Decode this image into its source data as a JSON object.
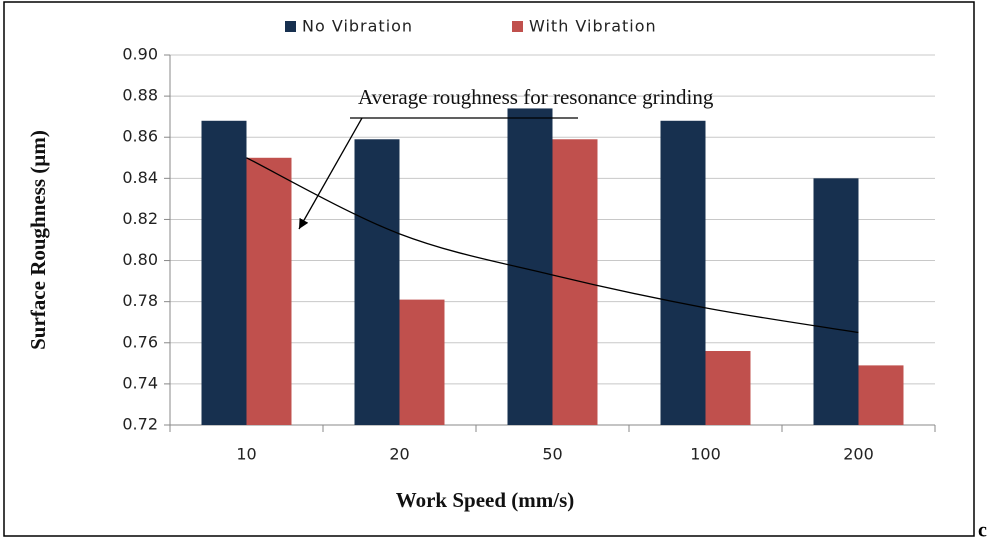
{
  "chart_data": {
    "type": "bar",
    "categories": [
      "10",
      "20",
      "50",
      "100",
      "200"
    ],
    "series": [
      {
        "name": "No Vibration",
        "color": "#17304f",
        "values": [
          0.868,
          0.859,
          0.874,
          0.868,
          0.84
        ]
      },
      {
        "name": "With Vibration",
        "color": "#c0504d",
        "values": [
          0.85,
          0.781,
          0.859,
          0.756,
          0.749
        ]
      }
    ],
    "trend": {
      "label": "Average roughness for resonance grinding",
      "values": [
        0.85,
        0.813,
        0.793,
        0.777,
        0.765
      ]
    },
    "ylim": [
      0.72,
      0.9
    ],
    "yticks": [
      0.72,
      0.74,
      0.76,
      0.78,
      {
        "value": 0.8,
        "label": "0.80"
      },
      0.82,
      0.84,
      0.86,
      0.88,
      {
        "value": 0.9,
        "label": "0.90"
      }
    ],
    "grid": true,
    "xlabel": "Work Speed (mm/s)",
    "ylabel": "Surface Roughness (µm)",
    "legend": "top",
    "panel_label": "c"
  }
}
